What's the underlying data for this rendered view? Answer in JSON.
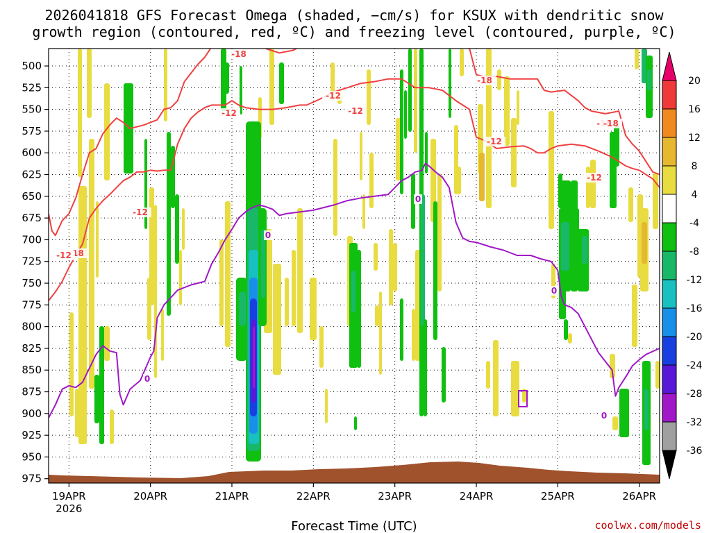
{
  "chart_data": {
    "type": "heatmap",
    "title_line1": "2026041818 GFS Forecast Omega (shaded, −cm/s) for KSUX with dendritic snow",
    "title_line2": "growth region (contoured, red, ºC) and freezing level (contoured, purple, ºC)",
    "xlabel": "Forecast Time (UTC)",
    "credit": "coolwx.com/models",
    "x_ticks": [
      "19APR",
      "20APR",
      "21APR",
      "22APR",
      "23APR",
      "24APR",
      "25APR",
      "26APR"
    ],
    "x_tick_hours": [
      6,
      30,
      54,
      78,
      102,
      126,
      150,
      174
    ],
    "x_year": "2026",
    "xlim_hours": [
      0,
      180
    ],
    "y_ticks": [
      500,
      525,
      550,
      575,
      600,
      625,
      650,
      675,
      700,
      725,
      750,
      775,
      800,
      825,
      850,
      875,
      900,
      925,
      950,
      975
    ],
    "ylim_hpa": [
      980,
      480
    ],
    "colorbar": {
      "labels": [
        "20",
        "16",
        "12",
        "8",
        "4",
        "-4",
        "-8",
        "-12",
        "-16",
        "-20",
        "-24",
        "-28",
        "-32",
        "-36"
      ],
      "bins": [
        {
          "color": "#e8006a"
        },
        {
          "color": "#f03a3a"
        },
        {
          "color": "#f08a20"
        },
        {
          "color": "#e6b830"
        },
        {
          "color": "#e8dc40"
        },
        {
          "color": "#ffffff"
        },
        {
          "color": "#10c010"
        },
        {
          "color": "#18b868"
        },
        {
          "color": "#18c0c0"
        },
        {
          "color": "#1890e8"
        },
        {
          "color": "#1840e0"
        },
        {
          "color": "#5818d8"
        },
        {
          "color": "#a018c8"
        },
        {
          "color": "#a0a0a0"
        },
        {
          "color": "#000000"
        }
      ]
    },
    "contour_labels": {
      "red": [
        "-18",
        "-12",
        "-12",
        "-18",
        "-12",
        "-18",
        "-12",
        "-12",
        "-18",
        "-12",
        "-18",
        "-12"
      ],
      "purple": [
        "0",
        "0",
        "0",
        "0",
        "0"
      ]
    },
    "freezing_level": {
      "color": "#a018c8",
      "points": [
        [
          0,
          905
        ],
        [
          2,
          890
        ],
        [
          4,
          872
        ],
        [
          6,
          868
        ],
        [
          8,
          870
        ],
        [
          10,
          864
        ],
        [
          12,
          848
        ],
        [
          14,
          832
        ],
        [
          16,
          822
        ],
        [
          18,
          828
        ],
        [
          20,
          830
        ],
        [
          21,
          878
        ],
        [
          22,
          890
        ],
        [
          24,
          872
        ],
        [
          27,
          862
        ],
        [
          30,
          835
        ],
        [
          31,
          828
        ],
        [
          32,
          790
        ],
        [
          34,
          775
        ],
        [
          38,
          758
        ],
        [
          42,
          752
        ],
        [
          46,
          748
        ],
        [
          48,
          728
        ],
        [
          50,
          715
        ],
        [
          52,
          700
        ],
        [
          54,
          688
        ],
        [
          56,
          675
        ],
        [
          58,
          668
        ],
        [
          60,
          663
        ],
        [
          62,
          660
        ],
        [
          64,
          662
        ],
        [
          66,
          665
        ],
        [
          68,
          672
        ],
        [
          70,
          670
        ],
        [
          74,
          668
        ],
        [
          78,
          666
        ],
        [
          84,
          660
        ],
        [
          88,
          655
        ],
        [
          92,
          652
        ],
        [
          96,
          650
        ],
        [
          100,
          648
        ],
        [
          102,
          640
        ],
        [
          104,
          632
        ],
        [
          106,
          628
        ],
        [
          108,
          622
        ],
        [
          110,
          620
        ],
        [
          111,
          612
        ],
        [
          112,
          615
        ],
        [
          114,
          622
        ],
        [
          116,
          628
        ],
        [
          118,
          640
        ],
        [
          120,
          680
        ],
        [
          122,
          698
        ],
        [
          124,
          702
        ],
        [
          126,
          703
        ],
        [
          130,
          708
        ],
        [
          134,
          712
        ],
        [
          138,
          718
        ],
        [
          142,
          718
        ],
        [
          145,
          722
        ],
        [
          148,
          725
        ],
        [
          150,
          735
        ],
        [
          151,
          765
        ],
        [
          152,
          775
        ],
        [
          154,
          778
        ],
        [
          156,
          785
        ],
        [
          158,
          800
        ],
        [
          160,
          815
        ],
        [
          162,
          830
        ],
        [
          164,
          840
        ],
        [
          166,
          850
        ],
        [
          167,
          880
        ],
        [
          168,
          870
        ],
        [
          170,
          858
        ],
        [
          172,
          845
        ],
        [
          174,
          838
        ],
        [
          176,
          832
        ],
        [
          180,
          825
        ]
      ]
    },
    "dgz_upper_m18": {
      "color": "#f04040",
      "points": [
        [
          0,
          670
        ],
        [
          1,
          690
        ],
        [
          2,
          695
        ],
        [
          4,
          678
        ],
        [
          6,
          670
        ],
        [
          8,
          652
        ],
        [
          10,
          625
        ],
        [
          12,
          600
        ],
        [
          14,
          595
        ],
        [
          16,
          578
        ],
        [
          18,
          568
        ],
        [
          20,
          560
        ],
        [
          22,
          565
        ],
        [
          24,
          572
        ],
        [
          28,
          568
        ],
        [
          32,
          562
        ],
        [
          34,
          550
        ],
        [
          36,
          548
        ],
        [
          38,
          540
        ],
        [
          40,
          518
        ],
        [
          42,
          508
        ],
        [
          44,
          498
        ],
        [
          46,
          490
        ],
        [
          48,
          478
        ],
        [
          50,
          470
        ],
        [
          54,
          468
        ],
        [
          58,
          465
        ],
        [
          60,
          472
        ],
        [
          64,
          480
        ],
        [
          68,
          485
        ],
        [
          72,
          482
        ],
        [
          74,
          478
        ],
        [
          76,
          468
        ],
        [
          80,
          465
        ],
        [
          84,
          470
        ],
        [
          88,
          472
        ],
        [
          92,
          470
        ],
        [
          96,
          470
        ],
        [
          100,
          466
        ],
        [
          104,
          465
        ],
        [
          108,
          468
        ],
        [
          112,
          470
        ],
        [
          116,
          472
        ],
        [
          120,
          478
        ],
        [
          124,
          480
        ],
        [
          126,
          510
        ],
        [
          128,
          512
        ],
        [
          132,
          512
        ],
        [
          136,
          515
        ],
        [
          140,
          515
        ],
        [
          144,
          515
        ],
        [
          146,
          528
        ],
        [
          148,
          530
        ],
        [
          152,
          528
        ],
        [
          156,
          540
        ],
        [
          158,
          548
        ],
        [
          160,
          552
        ],
        [
          164,
          555
        ],
        [
          168,
          552
        ],
        [
          170,
          580
        ],
        [
          172,
          590
        ],
        [
          174,
          598
        ],
        [
          176,
          610
        ],
        [
          178,
          622
        ],
        [
          180,
          625
        ]
      ]
    },
    "dgz_lower_m12": {
      "color": "#f04040",
      "points": [
        [
          0,
          770
        ],
        [
          2,
          760
        ],
        [
          4,
          748
        ],
        [
          6,
          732
        ],
        [
          8,
          718
        ],
        [
          10,
          705
        ],
        [
          11,
          690
        ],
        [
          12,
          675
        ],
        [
          14,
          664
        ],
        [
          16,
          655
        ],
        [
          18,
          648
        ],
        [
          20,
          640
        ],
        [
          22,
          632
        ],
        [
          24,
          628
        ],
        [
          26,
          622
        ],
        [
          28,
          622
        ],
        [
          30,
          620
        ],
        [
          32,
          621
        ],
        [
          34,
          620
        ],
        [
          36,
          620
        ],
        [
          38,
          590
        ],
        [
          40,
          572
        ],
        [
          42,
          560
        ],
        [
          44,
          553
        ],
        [
          46,
          548
        ],
        [
          48,
          545
        ],
        [
          52,
          545
        ],
        [
          54,
          540
        ],
        [
          56,
          545
        ],
        [
          58,
          548
        ],
        [
          62,
          550
        ],
        [
          66,
          550
        ],
        [
          70,
          548
        ],
        [
          74,
          545
        ],
        [
          76,
          545
        ],
        [
          80,
          538
        ],
        [
          84,
          530
        ],
        [
          88,
          525
        ],
        [
          92,
          520
        ],
        [
          96,
          518
        ],
        [
          100,
          515
        ],
        [
          104,
          515
        ],
        [
          108,
          525
        ],
        [
          112,
          525
        ],
        [
          116,
          528
        ],
        [
          120,
          540
        ],
        [
          124,
          550
        ],
        [
          126,
          582
        ],
        [
          128,
          585
        ],
        [
          132,
          595
        ],
        [
          136,
          593
        ],
        [
          140,
          592
        ],
        [
          142,
          595
        ],
        [
          144,
          600
        ],
        [
          146,
          600
        ],
        [
          148,
          595
        ],
        [
          150,
          592
        ],
        [
          154,
          590
        ],
        [
          158,
          592
        ],
        [
          162,
          598
        ],
        [
          166,
          605
        ],
        [
          170,
          615
        ],
        [
          172,
          618
        ],
        [
          174,
          620
        ],
        [
          178,
          630
        ],
        [
          180,
          640
        ]
      ]
    }
  }
}
